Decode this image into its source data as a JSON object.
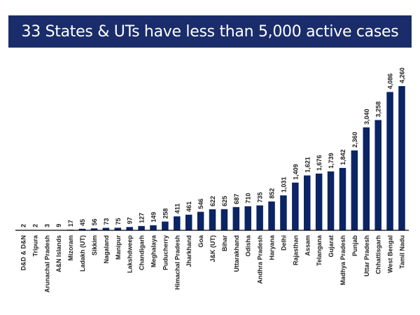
{
  "chart_data": {
    "type": "bar",
    "title": "33 States & UTs have less than 5,000 active cases",
    "xlabel": "",
    "ylabel": "",
    "grid": false,
    "bar_color": "#0b2463",
    "banner_color": "#1a2d6a",
    "categories": [
      "D&D & D&N",
      "Tripura",
      "Arunachal Pradesh",
      "A&N Islands",
      "Mizoram",
      "Ladakh (UT)",
      "Sikkim",
      "Nagaland",
      "Manipur",
      "Lakshdweep",
      "Chandigarh",
      "Meghalaya",
      "Puducherry",
      "Himachal Pradesh",
      "Jharkhand",
      "Goa",
      "J&K (UT)",
      "Bihar",
      "Uttarakhand",
      "Odisha",
      "Andhra Pradesh",
      "Haryana",
      "Delhi",
      "Rajasthan",
      "Assam",
      "Telangana",
      "Gujarat",
      "Madhya Pradesh",
      "Punjab",
      "Uttar Pradesh",
      "Chhattisgarh",
      "West Bengal",
      "Tamil Nadu"
    ],
    "values": [
      2,
      2,
      3,
      9,
      17,
      45,
      56,
      73,
      75,
      97,
      127,
      149,
      258,
      411,
      461,
      546,
      622,
      625,
      687,
      710,
      735,
      852,
      1031,
      1409,
      1621,
      1676,
      1739,
      1842,
      2360,
      3040,
      3258,
      4086,
      4260
    ],
    "data_labels": [
      "2",
      "2",
      "3",
      "9",
      "17",
      "45",
      "56",
      "73",
      "75",
      "97",
      "127",
      "149",
      "258",
      "411",
      "461",
      "546",
      "622",
      "625",
      "687",
      "710",
      "735",
      "852",
      "1,031",
      "1,409",
      "1,621",
      "1,676",
      "1,739",
      "1,842",
      "2,360",
      "3,040",
      "3,258",
      "4,086",
      "4,260"
    ]
  }
}
